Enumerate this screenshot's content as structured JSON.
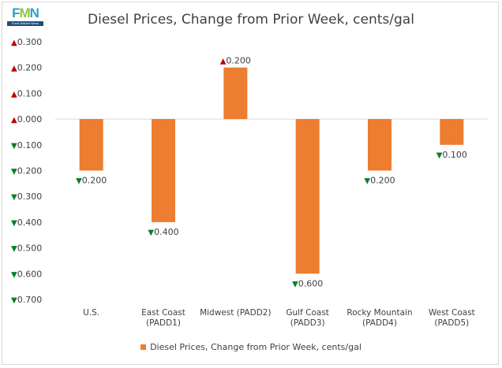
{
  "logo": {
    "letters_1": "F",
    "letters_2": "M",
    "letters_3": "N",
    "tagline": "Fuels Market News"
  },
  "colors": {
    "bar": "#ed7d31",
    "up": "#c00000",
    "down": "#00802b",
    "axis": "#d9d9d9",
    "text": "#404040"
  },
  "chart_data": {
    "type": "bar",
    "title": "Diesel Prices, Change from Prior Week, cents/gal",
    "categories": [
      [
        "U.S."
      ],
      [
        "East Coast",
        "(PADD1)"
      ],
      [
        "Midwest (PADD2)"
      ],
      [
        "Gulf Coast",
        "(PADD3)"
      ],
      [
        "Rocky Mountain",
        "(PADD4)"
      ],
      [
        "West Coast",
        "(PADD5)"
      ]
    ],
    "series": [
      {
        "name": "Diesel Prices, Change from Prior Week, cents/gal",
        "values": [
          -0.2,
          -0.4,
          0.2,
          -0.6,
          -0.2,
          -0.1
        ]
      }
    ],
    "data_labels": [
      "▼0.200",
      "▼0.400",
      "▲0.200",
      "▼0.600",
      "▼0.200",
      "▼0.100"
    ],
    "ylim": [
      -0.7,
      0.3
    ],
    "yticks": [
      0.3,
      0.2,
      0.1,
      0.0,
      -0.1,
      -0.2,
      -0.3,
      -0.4,
      -0.5,
      -0.6,
      -0.7
    ],
    "ytick_labels": [
      "▲0.300",
      "▲0.200",
      "▲0.100",
      "▲0.000",
      "▼0.100",
      "▼0.200",
      "▼0.300",
      "▼0.400",
      "▼0.500",
      "▼0.600",
      "▼0.700"
    ],
    "legend_position": "bottom",
    "grid": false
  }
}
